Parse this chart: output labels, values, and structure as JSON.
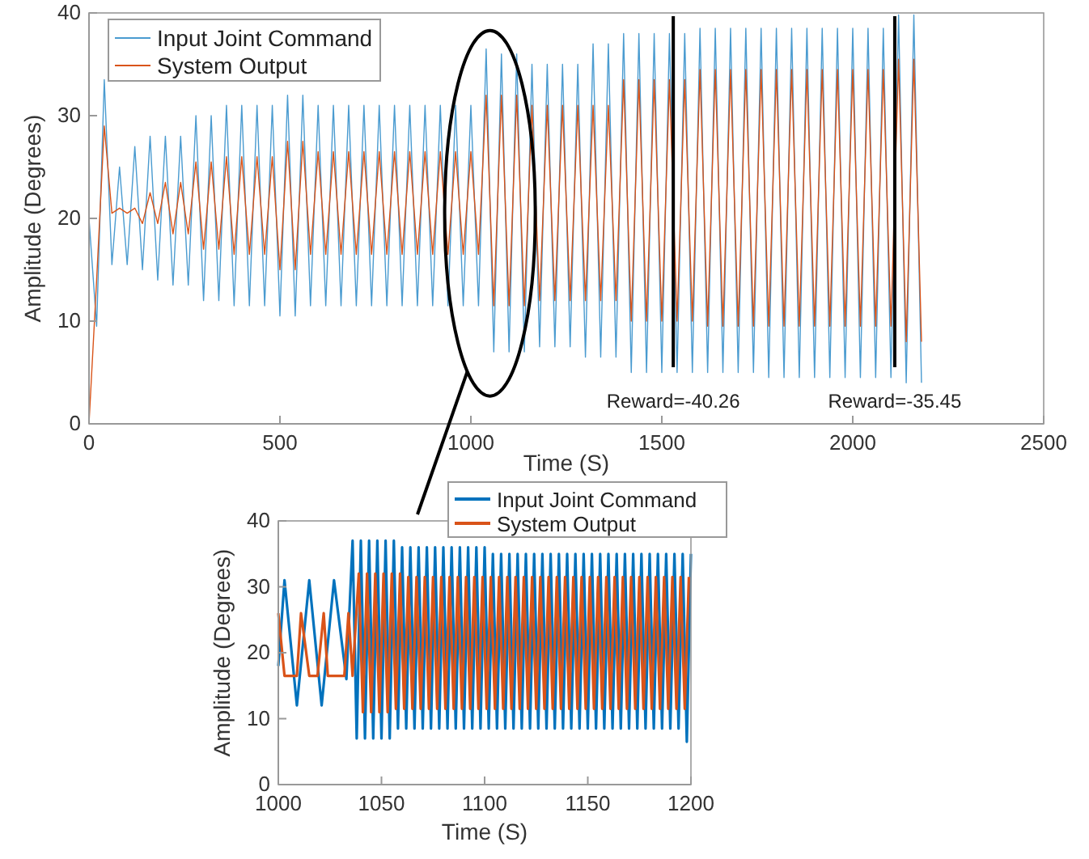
{
  "chart_data": [
    {
      "type": "line",
      "xlabel": "Time (S)",
      "ylabel": "Amplitude (Degrees)",
      "xlim": [
        0,
        2500
      ],
      "ylim": [
        0,
        40
      ],
      "xticks": [
        0,
        500,
        1000,
        1500,
        2000,
        2500
      ],
      "yticks": [
        0,
        10,
        20,
        30,
        40
      ],
      "legend": "top left",
      "marker": "none",
      "line_style": "solid",
      "x": [
        0,
        20,
        40,
        60,
        80,
        100,
        120,
        140,
        160,
        180,
        200,
        220,
        240,
        260,
        280,
        300,
        320,
        340,
        360,
        380,
        400,
        420,
        440,
        460,
        480,
        500,
        520,
        540,
        560,
        580,
        600,
        620,
        640,
        660,
        680,
        700,
        720,
        740,
        760,
        780,
        800,
        820,
        840,
        860,
        880,
        900,
        920,
        940,
        960,
        980,
        1000,
        1020,
        1040,
        1060,
        1080,
        1100,
        1120,
        1140,
        1160,
        1180,
        1200,
        1220,
        1240,
        1260,
        1280,
        1300,
        1320,
        1340,
        1360,
        1380,
        1400,
        1420,
        1440,
        1460,
        1480,
        1500,
        1520,
        1540,
        1560,
        1580,
        1600,
        1620,
        1640,
        1660,
        1680,
        1700,
        1720,
        1740,
        1760,
        1780,
        1800,
        1820,
        1840,
        1860,
        1880,
        1900,
        1920,
        1940,
        1960,
        1980,
        2000,
        2020,
        2040,
        2060,
        2080,
        2100,
        2120,
        2140,
        2160,
        2180
      ],
      "series": [
        {
          "name": "Input Joint Command",
          "color": "#4a9bd0",
          "values": [
            20,
            9.5,
            33.5,
            15.5,
            25,
            15.5,
            27,
            15,
            28,
            14,
            28,
            13.5,
            28,
            13.5,
            30,
            12,
            30,
            12,
            31,
            11.5,
            31,
            11.5,
            31,
            11.5,
            31,
            10.5,
            32,
            10.5,
            32,
            11.5,
            31,
            11.5,
            31,
            11.5,
            31,
            11.5,
            31,
            11.5,
            31,
            11.5,
            31,
            11.5,
            31,
            11.5,
            31,
            11.5,
            31,
            11.5,
            31,
            11.5,
            31,
            11.5,
            36.5,
            7,
            36,
            7,
            36,
            7,
            35,
            7.5,
            35,
            7.5,
            35,
            7.5,
            35,
            6.5,
            37,
            6.5,
            37,
            6.5,
            38,
            5,
            38,
            5,
            38,
            5,
            38,
            5,
            38,
            5,
            38.5,
            5,
            38.5,
            5,
            38.5,
            5,
            38.5,
            5,
            38.5,
            4.5,
            38.5,
            4.5,
            38.5,
            4.5,
            38.5,
            4.5,
            38.5,
            4.5,
            38.5,
            4.5,
            38.5,
            4.5,
            38.5,
            4.5,
            38.5,
            4.5,
            39.8,
            4,
            39.8,
            4
          ]
        },
        {
          "name": "System Output",
          "color": "#d9541a",
          "values": [
            0,
            14,
            29,
            20.5,
            21,
            20.5,
            21,
            19.5,
            22.5,
            19.5,
            23.5,
            18.5,
            23.5,
            18.5,
            25.5,
            17,
            25.5,
            17,
            26,
            16.5,
            26,
            16.5,
            26,
            16.5,
            26,
            15,
            27.5,
            15,
            27.5,
            16.5,
            26.5,
            16.5,
            26.5,
            16.5,
            26.5,
            16.5,
            26.5,
            16.5,
            26.5,
            16.5,
            26.5,
            16.5,
            26.5,
            16.5,
            26.5,
            16.5,
            26.5,
            16.5,
            26.5,
            16.5,
            26.5,
            16.5,
            32,
            11.5,
            32,
            11.5,
            32,
            11.5,
            31,
            12,
            31,
            12,
            31,
            12,
            31,
            12,
            31,
            12,
            31,
            12,
            33.5,
            10,
            33.5,
            10,
            33.5,
            10,
            33.5,
            10,
            33.5,
            10,
            34.5,
            9.5,
            34.5,
            9.5,
            34.5,
            9.5,
            34.5,
            9.5,
            34.5,
            9.5,
            34.5,
            9.5,
            34.5,
            9.5,
            34.5,
            9.5,
            34.5,
            9.5,
            34.5,
            9.5,
            34.5,
            9.5,
            34.5,
            9.5,
            34.5,
            9.5,
            35.5,
            8,
            35.5,
            8
          ]
        }
      ],
      "ref_lines": [
        {
          "axis": "x",
          "value": 1530,
          "color": "#000000"
        },
        {
          "axis": "x",
          "value": 2110,
          "color": "#000000"
        }
      ],
      "annotations": [
        "Reward=-40.26",
        "Reward=-35.45"
      ]
    },
    {
      "type": "line",
      "xlabel": "Time (S)",
      "ylabel": "Amplitude (Degrees)",
      "xlim": [
        1000,
        1200
      ],
      "ylim": [
        0,
        40
      ],
      "xticks": [
        1000,
        1050,
        1100,
        1150,
        1200
      ],
      "yticks": [
        0,
        10,
        20,
        30,
        40
      ],
      "legend": "top right",
      "marker": "none",
      "line_style": "solid",
      "series": [
        {
          "name": "Input Joint Command",
          "color": "#0072bd",
          "x": [
            1000,
            1003,
            1009,
            1015,
            1021,
            1027,
            1033,
            1036,
            1038,
            1040,
            1042,
            1044,
            1046,
            1048,
            1050,
            1052,
            1054,
            1056,
            1058,
            1060,
            1062,
            1064,
            1066,
            1068,
            1070,
            1072,
            1074,
            1076,
            1078,
            1080,
            1082,
            1084,
            1086,
            1088,
            1090,
            1092,
            1094,
            1096,
            1098,
            1100,
            1102,
            1104,
            1106,
            1108,
            1110,
            1112,
            1114,
            1116,
            1118,
            1120,
            1122,
            1124,
            1126,
            1128,
            1130,
            1132,
            1134,
            1136,
            1138,
            1140,
            1142,
            1144,
            1146,
            1148,
            1150,
            1152,
            1154,
            1156,
            1158,
            1160,
            1162,
            1164,
            1166,
            1168,
            1170,
            1172,
            1174,
            1176,
            1178,
            1180,
            1182,
            1184,
            1186,
            1188,
            1190,
            1192,
            1194,
            1196,
            1198,
            1200
          ],
          "values": [
            18,
            31,
            12,
            31,
            12,
            31,
            16,
            37,
            7,
            37,
            7,
            37,
            7,
            37,
            7,
            37,
            7,
            37,
            8.5,
            36,
            8.5,
            36,
            8.5,
            36,
            8.5,
            36,
            8.5,
            36,
            8.5,
            36,
            8.5,
            36,
            8.5,
            36,
            8.5,
            36,
            8.5,
            36,
            8.5,
            36,
            8.5,
            35,
            8.5,
            35,
            8.5,
            35,
            8.5,
            35,
            8.5,
            35,
            8.5,
            35,
            8.5,
            35,
            8.5,
            35,
            8.5,
            35,
            8.5,
            35,
            8.5,
            35,
            8.5,
            35,
            8.5,
            35,
            8.5,
            35,
            8.5,
            35,
            8.5,
            35,
            8.5,
            35,
            8.5,
            35,
            8.5,
            35,
            8.5,
            35,
            8.5,
            35,
            8.5,
            35,
            8.5,
            35,
            8.5,
            35,
            6.5,
            35
          ]
        },
        {
          "name": "System Output",
          "color": "#d95319",
          "x": [
            1000,
            1003,
            1009,
            1011,
            1015,
            1019,
            1022,
            1024,
            1032,
            1034,
            1036,
            1039,
            1041,
            1043,
            1045,
            1047,
            1049,
            1051,
            1053,
            1055,
            1057,
            1059,
            1061,
            1063,
            1065,
            1067,
            1069,
            1071,
            1073,
            1075,
            1077,
            1079,
            1081,
            1083,
            1085,
            1087,
            1089,
            1091,
            1093,
            1095,
            1097,
            1099,
            1101,
            1103,
            1105,
            1107,
            1109,
            1111,
            1113,
            1115,
            1117,
            1119,
            1121,
            1123,
            1125,
            1127,
            1129,
            1131,
            1133,
            1135,
            1137,
            1139,
            1141,
            1143,
            1145,
            1147,
            1149,
            1151,
            1153,
            1155,
            1157,
            1159,
            1161,
            1163,
            1165,
            1167,
            1169,
            1171,
            1173,
            1175,
            1177,
            1179,
            1181,
            1183,
            1185,
            1187,
            1189,
            1191,
            1193,
            1195,
            1197,
            1199
          ],
          "values": [
            26,
            16.5,
            16.5,
            26,
            16.5,
            16.5,
            26,
            16.5,
            16.5,
            26,
            16.5,
            32,
            11,
            32,
            11,
            32,
            11,
            32,
            11,
            32,
            11.5,
            32,
            11.5,
            31.5,
            11.5,
            31.5,
            11.5,
            31.5,
            11.5,
            31.5,
            11.5,
            31.5,
            11.5,
            31.5,
            11.5,
            31.5,
            11.5,
            31.5,
            11.5,
            31.5,
            11.5,
            31.5,
            11.5,
            31.5,
            11.5,
            31.5,
            11.5,
            31.5,
            11.5,
            31.5,
            11.5,
            31.5,
            11.5,
            31.5,
            11.5,
            31.5,
            11.5,
            31.5,
            11.5,
            31.5,
            11.5,
            31.5,
            11.5,
            31.5,
            11.5,
            31.5,
            11.5,
            31.5,
            11.5,
            31.5,
            11.5,
            31.5,
            11.5,
            31.5,
            11.5,
            31.5,
            11.5,
            31.5,
            11.5,
            31.5,
            11.5,
            31.5,
            11.5,
            31.5,
            11.5,
            31.5,
            11.5,
            31.5,
            11.5,
            31.5,
            11.5,
            31.5
          ]
        }
      ]
    }
  ]
}
